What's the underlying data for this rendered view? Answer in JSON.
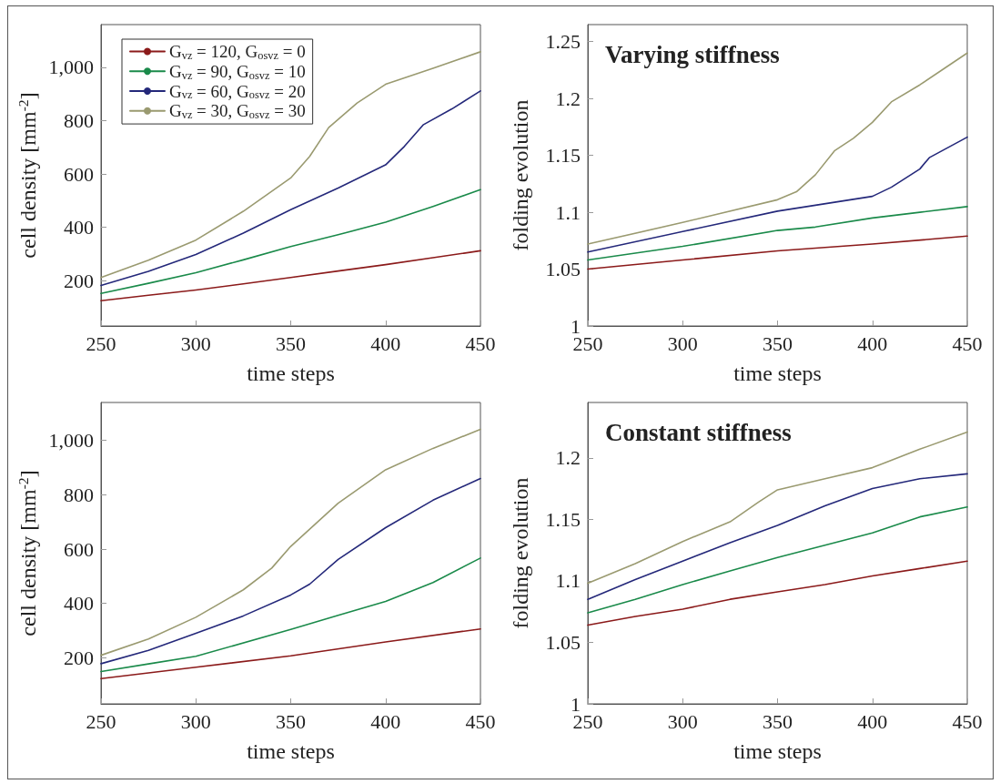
{
  "chart_data": [
    {
      "type": "line",
      "xlabel": "time steps",
      "ylabel": "cell density [mm$^{-2}$]",
      "xlim": [
        250,
        450
      ],
      "xticks": [
        250,
        300,
        350,
        400,
        450
      ],
      "ylim": [
        30,
        1160
      ],
      "yticks": [
        200,
        400,
        600,
        800,
        {
          "value": 1000,
          "label": "1,000"
        }
      ],
      "legend": "top left",
      "marker": "none",
      "grid": false,
      "series": [
        {
          "name": "G$_{vz}$ = 120, G$_{osvz}$ = 0",
          "color": "#8b1a1a",
          "x": [
            250,
            275,
            300,
            325,
            350,
            375,
            400,
            425,
            450
          ],
          "values": [
            125,
            145,
            165,
            188,
            212,
            236,
            260,
            286,
            312
          ]
        },
        {
          "name": "G$_{vz}$ = 90, G$_{osvz}$ = 10",
          "color": "#1a8a4a",
          "x": [
            250,
            275,
            300,
            325,
            350,
            375,
            400,
            425,
            450
          ],
          "values": [
            152,
            190,
            230,
            278,
            328,
            372,
            419,
            478,
            541
          ]
        },
        {
          "name": "G$_{vz}$ = 60, G$_{osvz}$ = 20",
          "color": "#24287a",
          "x": [
            250,
            275,
            300,
            325,
            350,
            375,
            400,
            410,
            420,
            435,
            450
          ],
          "values": [
            182,
            235,
            298,
            378,
            466,
            547,
            634,
            704,
            785,
            844,
            911
          ]
        },
        {
          "name": "G$_{vz}$ = 30, G$_{osvz}$ = 30",
          "color": "#9a9a70",
          "x": [
            250,
            275,
            300,
            325,
            350,
            360,
            370,
            385,
            400,
            425,
            450
          ],
          "values": [
            212,
            277,
            352,
            460,
            585,
            666,
            774,
            866,
            936,
            996,
            1058
          ]
        }
      ]
    },
    {
      "type": "line",
      "title": "Varying stiffness",
      "xlabel": "time steps",
      "ylabel": "folding evolution",
      "xlim": [
        250,
        450
      ],
      "xticks": [
        250,
        300,
        350,
        400,
        450
      ],
      "ylim": [
        1,
        1.265
      ],
      "yticks": [
        1,
        1.05,
        1.1,
        1.15,
        1.2,
        1.25
      ],
      "marker": "none",
      "grid": false,
      "series": [
        {
          "color": "#8b1a1a",
          "x": [
            250,
            300,
            350,
            400,
            450
          ],
          "values": [
            1.05,
            1.058,
            1.066,
            1.072,
            1.079
          ]
        },
        {
          "color": "#1a8a4a",
          "x": [
            250,
            300,
            350,
            370,
            400,
            425,
            450
          ],
          "values": [
            1.058,
            1.07,
            1.084,
            1.087,
            1.095,
            1.1,
            1.105
          ]
        },
        {
          "color": "#24287a",
          "x": [
            250,
            300,
            350,
            400,
            410,
            425,
            430,
            450
          ],
          "values": [
            1.065,
            1.083,
            1.101,
            1.114,
            1.122,
            1.138,
            1.148,
            1.166
          ]
        },
        {
          "color": "#9a9a70",
          "x": [
            250,
            300,
            350,
            360,
            370,
            380,
            390,
            400,
            410,
            425,
            450
          ],
          "values": [
            1.072,
            1.091,
            1.111,
            1.118,
            1.133,
            1.154,
            1.165,
            1.179,
            1.197,
            1.212,
            1.24
          ]
        }
      ]
    },
    {
      "type": "line",
      "xlabel": "time steps",
      "ylabel": "cell density [mm$^{-2}$]",
      "xlim": [
        250,
        450
      ],
      "xticks": [
        250,
        300,
        350,
        400,
        450
      ],
      "ylim": [
        30,
        1140
      ],
      "yticks": [
        200,
        400,
        600,
        800,
        {
          "value": 1000,
          "label": "1,000"
        }
      ],
      "marker": "none",
      "grid": false,
      "series": [
        {
          "color": "#8b1a1a",
          "x": [
            250,
            300,
            350,
            400,
            450
          ],
          "values": [
            123,
            165,
            207,
            258,
            306
          ]
        },
        {
          "color": "#1a8a4a",
          "x": [
            250,
            275,
            300,
            350,
            375,
            400,
            425,
            450
          ],
          "values": [
            149,
            177,
            205,
            304,
            356,
            407,
            477,
            567
          ]
        },
        {
          "color": "#24287a",
          "x": [
            250,
            275,
            300,
            325,
            350,
            360,
            375,
            400,
            425,
            450
          ],
          "values": [
            178,
            227,
            290,
            354,
            431,
            471,
            562,
            679,
            780,
            860
          ]
        },
        {
          "color": "#9a9a70",
          "x": [
            250,
            275,
            300,
            325,
            340,
            350,
            375,
            400,
            425,
            450
          ],
          "values": [
            209,
            269,
            349,
            450,
            530,
            610,
            769,
            892,
            971,
            1041
          ]
        }
      ]
    },
    {
      "type": "line",
      "title": "Constant stiffness",
      "xlabel": "time steps",
      "ylabel": "folding evolution",
      "xlim": [
        250,
        450
      ],
      "xticks": [
        250,
        300,
        350,
        400,
        450
      ],
      "ylim": [
        1,
        1.245
      ],
      "yticks": [
        1,
        1.05,
        1.1,
        1.15,
        1.2
      ],
      "marker": "none",
      "grid": false,
      "series": [
        {
          "color": "#8b1a1a",
          "x": [
            250,
            275,
            300,
            325,
            350,
            375,
            400,
            425,
            450
          ],
          "values": [
            1.064,
            1.071,
            1.077,
            1.085,
            1.091,
            1.097,
            1.104,
            1.11,
            1.116
          ]
        },
        {
          "color": "#1a8a4a",
          "x": [
            250,
            275,
            300,
            325,
            350,
            375,
            400,
            425,
            450
          ],
          "values": [
            1.074,
            1.085,
            1.097,
            1.108,
            1.119,
            1.129,
            1.139,
            1.152,
            1.16
          ]
        },
        {
          "color": "#24287a",
          "x": [
            250,
            275,
            300,
            325,
            350,
            375,
            400,
            425,
            450
          ],
          "values": [
            1.085,
            1.101,
            1.116,
            1.131,
            1.145,
            1.161,
            1.175,
            1.183,
            1.187
          ]
        },
        {
          "color": "#9a9a70",
          "x": [
            250,
            275,
            300,
            325,
            340,
            350,
            375,
            400,
            425,
            450
          ],
          "values": [
            1.098,
            1.114,
            1.132,
            1.148,
            1.164,
            1.174,
            1.183,
            1.192,
            1.207,
            1.221
          ]
        }
      ]
    }
  ]
}
